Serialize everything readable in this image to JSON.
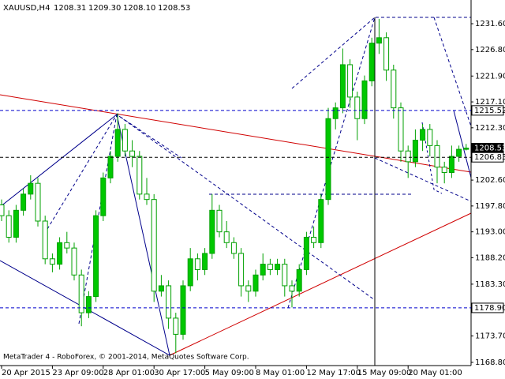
{
  "chart_data": {
    "type": "candlestick",
    "symbol": "XAUUSD,H4",
    "header_ohlc": [
      "1208.31",
      "1209.30",
      "1208.10",
      "1208.53"
    ],
    "footer": "MetaTrader 4 - RoboForex, © 2001-2014, MetaQuotes Software Corp.",
    "up_color": "#00c800",
    "down_color": "#ffffff",
    "wick_color": "#00a000",
    "candles": [
      [
        1198,
        1199,
        1195,
        1196
      ],
      [
        1196,
        1197,
        1191,
        1192
      ],
      [
        1192,
        1198,
        1191,
        1197
      ],
      [
        1197,
        1201,
        1196,
        1200
      ],
      [
        1200,
        1203.5,
        1199,
        1202
      ],
      [
        1202,
        1203,
        1194,
        1195
      ],
      [
        1195,
        1196,
        1187,
        1188
      ],
      [
        1188,
        1189,
        1185.5,
        1187
      ],
      [
        1187,
        1192,
        1186,
        1191
      ],
      [
        1191,
        1193,
        1189,
        1190
      ],
      [
        1190,
        1191,
        1184,
        1185
      ],
      [
        1185,
        1186,
        1175.5,
        1178
      ],
      [
        1178,
        1182,
        1177,
        1181
      ],
      [
        1181,
        1197,
        1180,
        1196
      ],
      [
        1196,
        1204,
        1195,
        1203
      ],
      [
        1203,
        1208,
        1202,
        1207
      ],
      [
        1207,
        1215,
        1206,
        1212
      ],
      [
        1212,
        1213,
        1207,
        1208
      ],
      [
        1208,
        1210,
        1205,
        1207
      ],
      [
        1207,
        1208,
        1199,
        1200
      ],
      [
        1200,
        1203,
        1198,
        1199
      ],
      [
        1199,
        1200,
        1180,
        1182
      ],
      [
        1182,
        1185,
        1181,
        1183
      ],
      [
        1183,
        1184,
        1175,
        1177
      ],
      [
        1177,
        1178,
        1170.5,
        1174
      ],
      [
        1174,
        1184,
        1173,
        1183
      ],
      [
        1183,
        1190,
        1182,
        1188
      ],
      [
        1188,
        1189,
        1184,
        1186
      ],
      [
        1186,
        1190,
        1185,
        1189
      ],
      [
        1189,
        1200,
        1188,
        1197
      ],
      [
        1197,
        1198,
        1192,
        1193
      ],
      [
        1193,
        1195,
        1190,
        1191
      ],
      [
        1191,
        1192,
        1188,
        1189
      ],
      [
        1189,
        1190,
        1181,
        1183
      ],
      [
        1183,
        1184,
        1180,
        1182
      ],
      [
        1182,
        1186,
        1181,
        1185
      ],
      [
        1185,
        1189,
        1184,
        1187
      ],
      [
        1187,
        1188,
        1185,
        1186
      ],
      [
        1186,
        1188,
        1185,
        1187
      ],
      [
        1187,
        1188,
        1181,
        1183
      ],
      [
        1183,
        1184,
        1179,
        1182
      ],
      [
        1182,
        1187,
        1181,
        1186
      ],
      [
        1186,
        1193,
        1185,
        1192
      ],
      [
        1192,
        1194,
        1190,
        1191
      ],
      [
        1191,
        1200,
        1190,
        1199
      ],
      [
        1199,
        1216,
        1198,
        1214
      ],
      [
        1214,
        1217,
        1212,
        1216
      ],
      [
        1216,
        1227,
        1215,
        1224
      ],
      [
        1224,
        1225,
        1216,
        1218
      ],
      [
        1218,
        1219,
        1210,
        1214
      ],
      [
        1214,
        1222,
        1213,
        1221
      ],
      [
        1221,
        1229,
        1220,
        1228
      ],
      [
        1228,
        1232.5,
        1226,
        1229
      ],
      [
        1229,
        1230,
        1221,
        1223
      ],
      [
        1223,
        1224,
        1214,
        1216
      ],
      [
        1216,
        1217,
        1206,
        1208
      ],
      [
        1208,
        1209,
        1203,
        1206
      ],
      [
        1206,
        1212,
        1205,
        1210
      ],
      [
        1210,
        1213,
        1208,
        1212
      ],
      [
        1212,
        1213,
        1207,
        1209
      ],
      [
        1209,
        1210,
        1202,
        1205
      ],
      [
        1205,
        1206,
        1202,
        1204
      ],
      [
        1204,
        1209,
        1203,
        1207
      ],
      [
        1207,
        1209,
        1206,
        1208.31
      ],
      [
        1208.31,
        1209.3,
        1208.1,
        1208.53
      ]
    ],
    "ylim": [
      1168.2,
      1236.0
    ],
    "yticks": [
      {
        "value": 1231.6,
        "label": "1231.60"
      },
      {
        "value": 1226.8,
        "label": "1226.80"
      },
      {
        "value": 1221.9,
        "label": "1221.90"
      },
      {
        "value": 1217.1,
        "label": "1217.10"
      },
      {
        "value": 1212.3,
        "label": "1212.30"
      },
      {
        "value": 1202.6,
        "label": "1202.60"
      },
      {
        "value": 1197.8,
        "label": "1197.80"
      },
      {
        "value": 1193.0,
        "label": "1193.00"
      },
      {
        "value": 1188.2,
        "label": "1188.20"
      },
      {
        "value": 1183.3,
        "label": "1183.30"
      },
      {
        "value": 1173.7,
        "label": "1173.70"
      },
      {
        "value": 1168.8,
        "label": "1168.80"
      }
    ],
    "xticks": [
      {
        "value": 0,
        "label": "20 Apr 2015"
      },
      {
        "value": 7,
        "label": "23 Apr 09:00"
      },
      {
        "value": 14,
        "label": "28 Apr 01:00"
      },
      {
        "value": 21,
        "label": "30 Apr 17:00"
      },
      {
        "value": 28,
        "label": "5 May 09:00"
      },
      {
        "value": 35,
        "label": "8 May 01:00"
      },
      {
        "value": 42,
        "label": "12 May 17:00"
      },
      {
        "value": 49,
        "label": "15 May 09:00"
      },
      {
        "value": 56,
        "label": "20 May 01:00"
      }
    ],
    "levels": [
      {
        "value": 1215.52,
        "color": "#0000cc",
        "box": "#ffffff"
      },
      {
        "value": 1208.53,
        "color": null,
        "box": "#000000"
      },
      {
        "value": 1206.83,
        "color": "#000000",
        "box": "#ffffff"
      },
      {
        "value": 1178.9,
        "label": "1178.90",
        "color": "#0000cc",
        "box": "#ffffff"
      }
    ]
  }
}
